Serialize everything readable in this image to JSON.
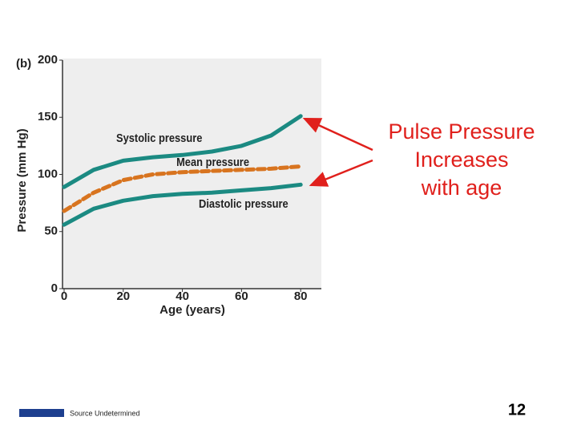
{
  "chart_data": {
    "type": "line",
    "panel_label": "(b)",
    "x_label": "Age (years)",
    "y_label": "Pressure (mm Hg)",
    "x": [
      0,
      10,
      20,
      30,
      40,
      50,
      60,
      70,
      80
    ],
    "series": [
      {
        "name": "Systolic pressure",
        "color": "#1b8a82",
        "style": "solid",
        "values": [
          89,
          104,
          112,
          115,
          117,
          120,
          125,
          134,
          151
        ]
      },
      {
        "name": "Mean pressure",
        "color": "#d8741f",
        "style": "dashed",
        "values": [
          68,
          84,
          95,
          100,
          102,
          103,
          104,
          105,
          107
        ]
      },
      {
        "name": "Diastolic pressure",
        "color": "#1b8a82",
        "style": "solid",
        "values": [
          56,
          70,
          77,
          81,
          83,
          84,
          86,
          88,
          91
        ]
      }
    ],
    "xlim": [
      0,
      87
    ],
    "ylim": [
      0,
      200
    ],
    "xticks": [
      0,
      20,
      40,
      60,
      80
    ],
    "yticks": [
      0,
      50,
      100,
      150,
      200
    ],
    "annotation": [
      "Pulse Pressure",
      "Increases",
      "with age"
    ]
  },
  "footer": {
    "source": "Source Undetermined",
    "page_number": "12"
  }
}
